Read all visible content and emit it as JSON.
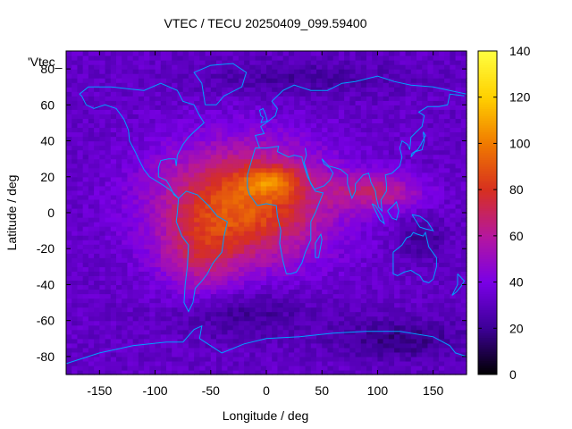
{
  "chart_data": {
    "type": "heatmap",
    "title": "VTEC / TECU 20250409_099.59400",
    "xlabel": "Longitude / deg",
    "ylabel": "Latitude / deg",
    "xlim": [
      -180,
      180
    ],
    "ylim": [
      -90,
      90
    ],
    "xticks": [
      -150,
      -100,
      -50,
      0,
      50,
      100,
      150
    ],
    "yticks": [
      -80,
      -60,
      -40,
      -20,
      0,
      20,
      40,
      60,
      80
    ],
    "colorbar": {
      "range": [
        0,
        140
      ],
      "ticks": [
        0,
        20,
        40,
        60,
        80,
        100,
        120,
        140
      ],
      "palette": [
        "#000000",
        "#3c0096",
        "#7a00e6",
        "#b5179e",
        "#d7301f",
        "#f07a00",
        "#ffd000",
        "#ffff40"
      ]
    },
    "legend_key": "'Vtec_",
    "coastline_color": "#00a0ff",
    "grid": {
      "lon_step_deg": 5,
      "lat_step_deg": 2.5
    },
    "features": [
      {
        "name": "background",
        "value": 32
      },
      {
        "name": "equatorial-core-americas-africa",
        "lon": -20,
        "lat": 5,
        "lon_width": 75,
        "lat_width": 32,
        "amplitude": 60
      },
      {
        "name": "peak-crest-west-africa",
        "lon": 5,
        "lat": 18,
        "lon_width": 25,
        "lat_width": 8,
        "amplitude": 28
      },
      {
        "name": "south-america-anomaly",
        "lon": -60,
        "lat": -25,
        "lon_width": 35,
        "lat_width": 22,
        "amplitude": 22
      },
      {
        "name": "indian-ocean-crest",
        "lon": 100,
        "lat": 12,
        "lon_width": 40,
        "lat_width": 10,
        "amplitude": 30
      },
      {
        "name": "south-atlantic-low",
        "lon": -20,
        "lat": -55,
        "lon_width": 60,
        "lat_width": 15,
        "amplitude": -12
      },
      {
        "name": "arctic-low",
        "lon": 30,
        "lat": 75,
        "lon_width": 90,
        "lat_width": 10,
        "amplitude": -10
      },
      {
        "name": "antarctic-low",
        "lon": 120,
        "lat": -70,
        "lon_width": 60,
        "lat_width": 12,
        "amplitude": -14
      },
      {
        "name": "pacific-minimum",
        "lon": 140,
        "lat": -15,
        "lon_width": 20,
        "lat_width": 12,
        "amplitude": -12
      }
    ],
    "coastlines": [
      {
        "name": "north-america",
        "points": [
          [
            -168,
            66
          ],
          [
            -160,
            70
          ],
          [
            -140,
            70
          ],
          [
            -125,
            69
          ],
          [
            -110,
            68
          ],
          [
            -95,
            72
          ],
          [
            -80,
            68
          ],
          [
            -75,
            62
          ],
          [
            -65,
            60
          ],
          [
            -60,
            54
          ],
          [
            -56,
            50
          ],
          [
            -65,
            45
          ],
          [
            -70,
            42
          ],
          [
            -75,
            38
          ],
          [
            -80,
            32
          ],
          [
            -81,
            26
          ],
          [
            -82,
            30
          ],
          [
            -88,
            30
          ],
          [
            -95,
            29
          ],
          [
            -97,
            25
          ],
          [
            -97,
            20
          ],
          [
            -90,
            18
          ],
          [
            -87,
            15
          ],
          [
            -83,
            10
          ],
          [
            -79,
            8
          ],
          [
            -85,
            12
          ],
          [
            -92,
            15
          ],
          [
            -105,
            20
          ],
          [
            -110,
            24
          ],
          [
            -115,
            30
          ],
          [
            -118,
            34
          ],
          [
            -123,
            40
          ],
          [
            -124,
            46
          ],
          [
            -128,
            52
          ],
          [
            -135,
            58
          ],
          [
            -145,
            60
          ],
          [
            -155,
            58
          ],
          [
            -162,
            60
          ],
          [
            -166,
            65
          ],
          [
            -168,
            66
          ]
        ]
      },
      {
        "name": "greenland",
        "points": [
          [
            -55,
            60
          ],
          [
            -45,
            60
          ],
          [
            -38,
            65
          ],
          [
            -22,
            70
          ],
          [
            -18,
            78
          ],
          [
            -30,
            83
          ],
          [
            -50,
            82
          ],
          [
            -65,
            78
          ],
          [
            -58,
            72
          ],
          [
            -55,
            60
          ]
        ]
      },
      {
        "name": "south-america",
        "points": [
          [
            -79,
            8
          ],
          [
            -72,
            12
          ],
          [
            -62,
            10
          ],
          [
            -52,
            4
          ],
          [
            -44,
            -2
          ],
          [
            -35,
            -5
          ],
          [
            -38,
            -13
          ],
          [
            -40,
            -22
          ],
          [
            -48,
            -28
          ],
          [
            -53,
            -34
          ],
          [
            -58,
            -38
          ],
          [
            -64,
            -42
          ],
          [
            -66,
            -50
          ],
          [
            -70,
            -55
          ],
          [
            -74,
            -50
          ],
          [
            -73,
            -40
          ],
          [
            -71,
            -30
          ],
          [
            -70,
            -18
          ],
          [
            -76,
            -13
          ],
          [
            -81,
            -5
          ],
          [
            -80,
            0
          ],
          [
            -79,
            8
          ]
        ]
      },
      {
        "name": "europe-africa",
        "points": [
          [
            -10,
            36
          ],
          [
            -6,
            36
          ],
          [
            -10,
            43
          ],
          [
            -2,
            44
          ],
          [
            -5,
            48
          ],
          [
            2,
            51
          ],
          [
            8,
            54
          ],
          [
            10,
            58
          ],
          [
            5,
            62
          ],
          [
            15,
            68
          ],
          [
            25,
            71
          ],
          [
            40,
            68
          ],
          [
            55,
            68
          ],
          [
            68,
            72
          ],
          [
            80,
            73
          ],
          [
            100,
            76
          ],
          [
            115,
            73
          ],
          [
            130,
            71
          ],
          [
            150,
            70
          ],
          [
            165,
            68
          ],
          [
            180,
            66
          ]
        ]
      },
      {
        "name": "africa",
        "points": [
          [
            -10,
            36
          ],
          [
            -17,
            21
          ],
          [
            -17,
            14
          ],
          [
            -15,
            10
          ],
          [
            -8,
            4
          ],
          [
            0,
            5
          ],
          [
            9,
            4
          ],
          [
            10,
            -2
          ],
          [
            13,
            -10
          ],
          [
            12,
            -17
          ],
          [
            15,
            -27
          ],
          [
            18,
            -34
          ],
          [
            22,
            -34
          ],
          [
            27,
            -33
          ],
          [
            32,
            -28
          ],
          [
            35,
            -22
          ],
          [
            40,
            -15
          ],
          [
            40,
            -5
          ],
          [
            44,
            0
          ],
          [
            51,
            11
          ],
          [
            44,
            12
          ],
          [
            37,
            20
          ],
          [
            33,
            28
          ],
          [
            32,
            31
          ],
          [
            25,
            32
          ],
          [
            20,
            31
          ],
          [
            10,
            34
          ],
          [
            11,
            37
          ],
          [
            0,
            36
          ],
          [
            -10,
            36
          ]
        ]
      },
      {
        "name": "asia-south",
        "points": [
          [
            35,
            36
          ],
          [
            36,
            32
          ],
          [
            34,
            28
          ],
          [
            40,
            16
          ],
          [
            43,
            13
          ],
          [
            52,
            15
          ],
          [
            57,
            18
          ],
          [
            60,
            22
          ],
          [
            57,
            25
          ],
          [
            52,
            27
          ],
          [
            50,
            30
          ],
          [
            56,
            26
          ],
          [
            62,
            25
          ],
          [
            67,
            24
          ],
          [
            73,
            21
          ],
          [
            73,
            16
          ],
          [
            77,
            8
          ],
          [
            80,
            12
          ],
          [
            80,
            16
          ],
          [
            87,
            21
          ],
          [
            92,
            22
          ],
          [
            94,
            17
          ],
          [
            98,
            12
          ],
          [
            99,
            8
          ],
          [
            101,
            3
          ],
          [
            104,
            1
          ],
          [
            103,
            7
          ],
          [
            105,
            9
          ],
          [
            108,
            12
          ],
          [
            108,
            16
          ],
          [
            107,
            21
          ],
          [
            113,
            22
          ],
          [
            120,
            26
          ],
          [
            122,
            31
          ],
          [
            120,
            36
          ],
          [
            122,
            40
          ],
          [
            127,
            38
          ],
          [
            129,
            35
          ],
          [
            130,
            42
          ],
          [
            140,
            48
          ],
          [
            142,
            54
          ],
          [
            137,
            56
          ],
          [
            145,
            59
          ],
          [
            155,
            59
          ],
          [
            163,
            60
          ],
          [
            165,
            66
          ],
          [
            178,
            65
          ]
        ]
      },
      {
        "name": "australia",
        "points": [
          [
            114,
            -22
          ],
          [
            114,
            -34
          ],
          [
            118,
            -35
          ],
          [
            124,
            -33
          ],
          [
            130,
            -32
          ],
          [
            135,
            -34
          ],
          [
            138,
            -35
          ],
          [
            141,
            -38
          ],
          [
            146,
            -39
          ],
          [
            150,
            -37
          ],
          [
            153,
            -30
          ],
          [
            153,
            -25
          ],
          [
            146,
            -19
          ],
          [
            143,
            -11
          ],
          [
            141,
            -13
          ],
          [
            136,
            -12
          ],
          [
            132,
            -11
          ],
          [
            130,
            -13
          ],
          [
            126,
            -14
          ],
          [
            122,
            -18
          ],
          [
            114,
            -22
          ]
        ]
      },
      {
        "name": "madagascar",
        "points": [
          [
            44,
            -25
          ],
          [
            47,
            -25
          ],
          [
            50,
            -15
          ],
          [
            49,
            -12
          ],
          [
            44,
            -17
          ],
          [
            44,
            -25
          ]
        ]
      },
      {
        "name": "borneo",
        "points": [
          [
            109,
            1
          ],
          [
            113,
            -3
          ],
          [
            117,
            -4
          ],
          [
            119,
            1
          ],
          [
            117,
            6
          ],
          [
            114,
            4
          ],
          [
            109,
            1
          ]
        ]
      },
      {
        "name": "sumatra",
        "points": [
          [
            95,
            5
          ],
          [
            98,
            4
          ],
          [
            104,
            -2
          ],
          [
            106,
            -6
          ],
          [
            102,
            -4
          ],
          [
            95,
            5
          ]
        ]
      },
      {
        "name": "new-guinea",
        "points": [
          [
            131,
            -1
          ],
          [
            138,
            -2
          ],
          [
            145,
            -5
          ],
          [
            150,
            -10
          ],
          [
            143,
            -9
          ],
          [
            138,
            -8
          ],
          [
            131,
            -1
          ]
        ]
      },
      {
        "name": "japan",
        "points": [
          [
            130,
            31
          ],
          [
            134,
            34
          ],
          [
            140,
            35
          ],
          [
            142,
            40
          ],
          [
            141,
            45
          ],
          [
            143,
            43
          ],
          [
            139,
            38
          ],
          [
            136,
            35
          ],
          [
            131,
            33
          ],
          [
            130,
            31
          ]
        ]
      },
      {
        "name": "new-zealand",
        "points": [
          [
            172,
            -34
          ],
          [
            178,
            -38
          ],
          [
            175,
            -41
          ],
          [
            171,
            -44
          ],
          [
            167,
            -46
          ],
          [
            172,
            -40
          ],
          [
            172,
            -34
          ]
        ]
      },
      {
        "name": "british-isles",
        "points": [
          [
            -5,
            50
          ],
          [
            1,
            51
          ],
          [
            -1,
            55
          ],
          [
            -3,
            58
          ],
          [
            -6,
            57
          ],
          [
            -5,
            54
          ],
          [
            -3,
            53
          ],
          [
            -5,
            50
          ]
        ]
      },
      {
        "name": "antarctica",
        "points": [
          [
            -180,
            -84
          ],
          [
            -150,
            -78
          ],
          [
            -120,
            -74
          ],
          [
            -90,
            -72
          ],
          [
            -75,
            -72
          ],
          [
            -65,
            -65
          ],
          [
            -58,
            -63
          ],
          [
            -60,
            -70
          ],
          [
            -40,
            -78
          ],
          [
            -20,
            -73
          ],
          [
            0,
            -70
          ],
          [
            30,
            -69
          ],
          [
            60,
            -67
          ],
          [
            90,
            -66
          ],
          [
            120,
            -66
          ],
          [
            150,
            -69
          ],
          [
            165,
            -74
          ],
          [
            170,
            -78
          ],
          [
            180,
            -80
          ]
        ]
      }
    ]
  }
}
